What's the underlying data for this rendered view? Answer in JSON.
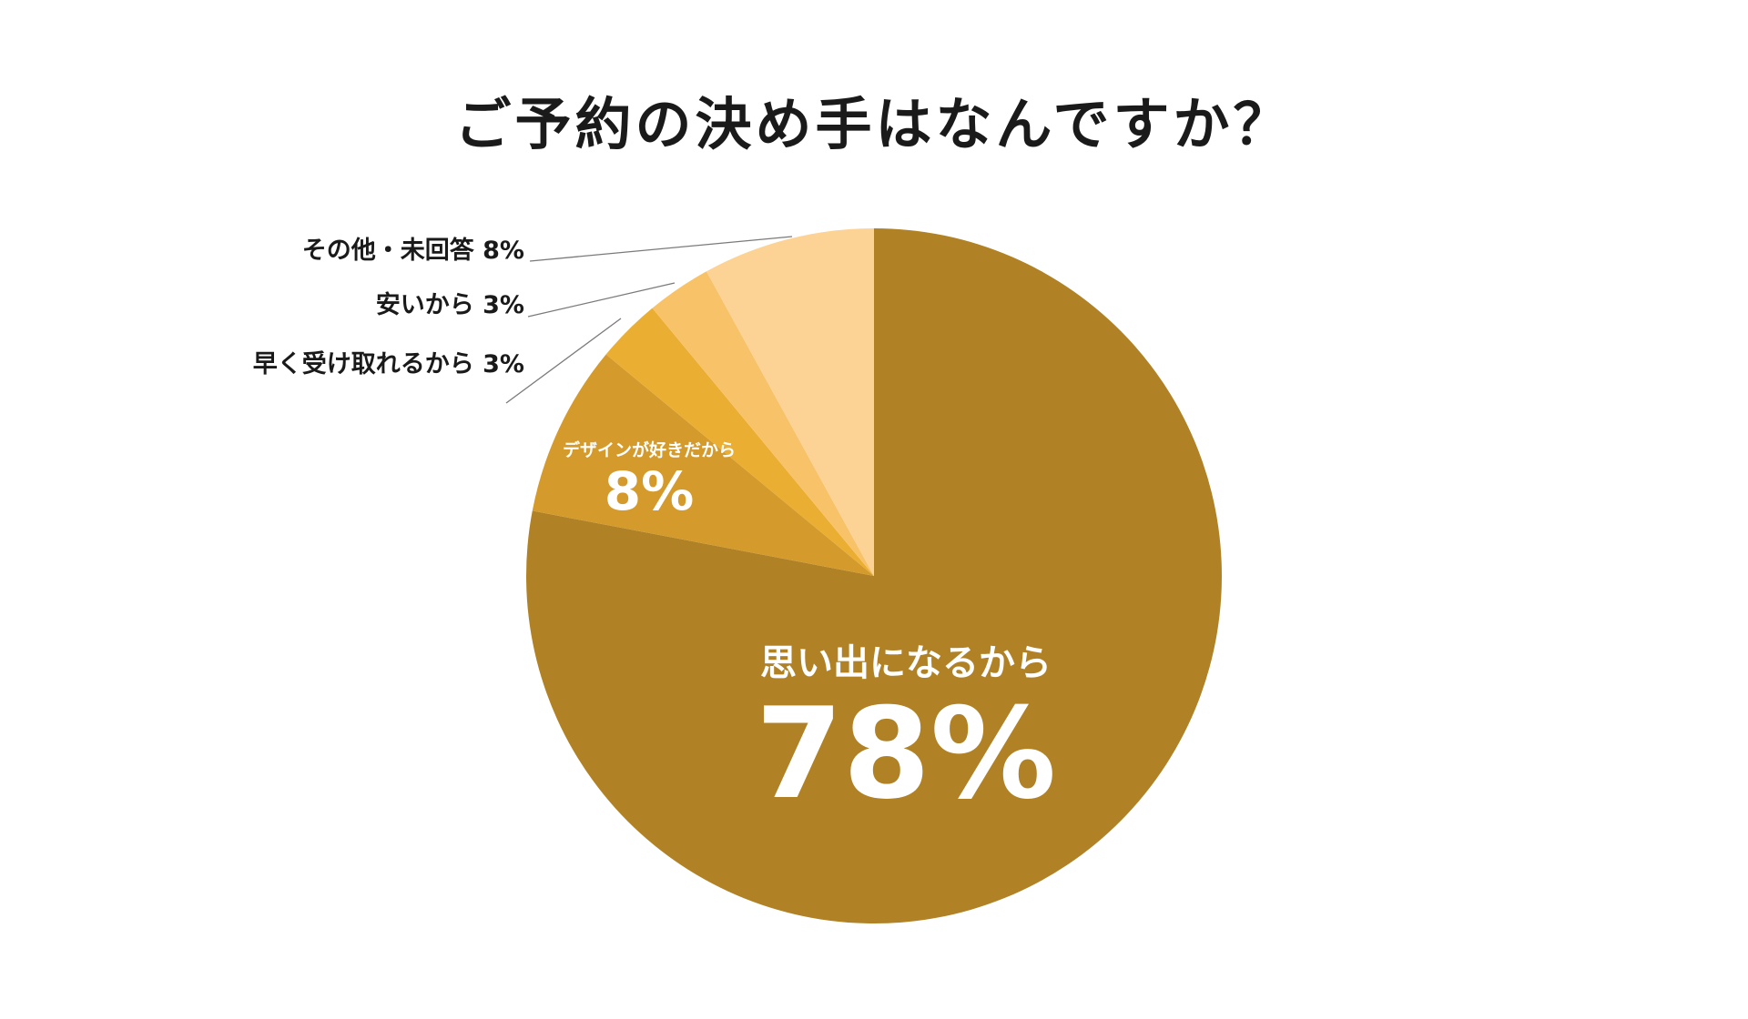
{
  "chart_data": {
    "type": "pie",
    "title": "ご予約の決め手はなんですか？",
    "start": "12 o'clock",
    "direction": "clockwise",
    "slices": [
      {
        "label": "思い出になるから",
        "value": 78,
        "value_text": "78%",
        "color": "#b08225",
        "label_placement": "inside"
      },
      {
        "label": "デザインが好きだから",
        "value": 8,
        "value_text": "8%",
        "color": "#d49a2c",
        "label_placement": "inside"
      },
      {
        "label": "早く受け取れるから",
        "value": 3,
        "value_text": "3%",
        "color": "#eaae33",
        "label_placement": "outside"
      },
      {
        "label": "安いから",
        "value": 3,
        "value_text": "3%",
        "color": "#f8c368",
        "label_placement": "outside"
      },
      {
        "label": "その他・未回答",
        "value": 8,
        "value_text": "8%",
        "color": "#fcd395",
        "label_placement": "outside"
      }
    ]
  }
}
